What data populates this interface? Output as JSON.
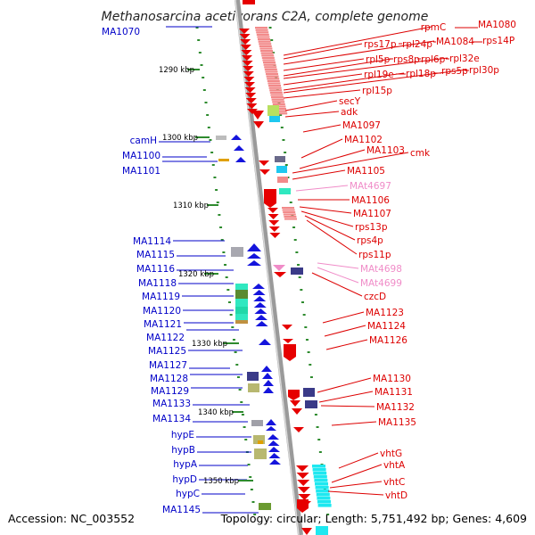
{
  "title": "Methanosarcina acetivorans C2A, complete genome",
  "footer": {
    "accession": "Accession: NC_003552",
    "stats": "Topology: circular; Length: 5,751,492 bp; Genes: 4,609"
  },
  "colors": {
    "left_label": "#0000c8",
    "right_label": "#dd0000",
    "pink_label": "#f08cc8",
    "tick": "#2e8b2e",
    "strand_blue": "#1414dc",
    "strand_red": "#e60000"
  },
  "kbp_ticks": [
    "1290 kbp",
    "1300 kbp",
    "1310 kbp",
    "1320 kbp",
    "1330 kbp",
    "1340 kbp",
    "1350 kbp"
  ],
  "left_labels": [
    "MA1070",
    "camH",
    "MA1100",
    "MA1101",
    "MA1114",
    "MA1115",
    "MA1116",
    "MA1118",
    "MA1119",
    "MA1120",
    "MA1121",
    "MA1122",
    "MA1125",
    "MA1127",
    "MA1128",
    "MA1129",
    "MA1133",
    "MA1134",
    "hypE",
    "hypB",
    "hypA",
    "hypD",
    "hypC",
    "MA1145"
  ],
  "right_labels": [
    "rpmC",
    "MA1080",
    "rps17p",
    "rpl24p",
    "MA1084",
    "rps14P",
    "rpl5p",
    "rps8p",
    "rpl6p",
    "rpl32e",
    "rpl19e",
    "rpl18p",
    "rps5p",
    "rpl30p",
    "rpl15p",
    "secY",
    "adk",
    "MA1097",
    "MA1102",
    "MA1103",
    "cmk",
    "MA1105",
    "MAt4697",
    "MA1106",
    "MA1107",
    "rps13p",
    "rps4p",
    "rps11p",
    "MAt4698",
    "MAt4699",
    "czcD",
    "MA1123",
    "MA1124",
    "MA1126",
    "MA1130",
    "MA1131",
    "MA1132",
    "MA1135",
    "vhtG",
    "vhtA",
    "vhtC",
    "vhtD"
  ]
}
